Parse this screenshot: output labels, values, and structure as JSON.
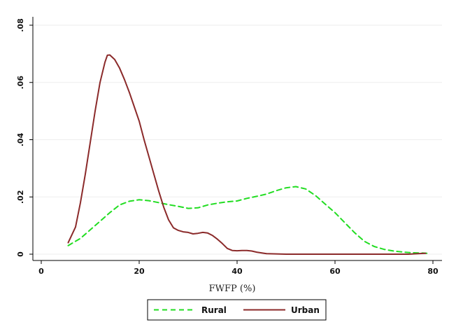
{
  "chart_data": {
    "type": "line",
    "title": "",
    "xlabel": "FWFP (%)",
    "ylabel": "",
    "xlim": [
      0,
      80
    ],
    "ylim": [
      0,
      0.08
    ],
    "xticks": [
      0,
      20,
      40,
      60,
      80
    ],
    "xtick_labels": [
      "0",
      "20",
      "40",
      "60",
      "80"
    ],
    "yticks": [
      0,
      0.02,
      0.04,
      0.06,
      0.08
    ],
    "ytick_labels": [
      "0",
      ".02",
      ".04",
      ".06",
      ".08"
    ],
    "grid": "horizontal",
    "legend_position": "bottom-center",
    "series": [
      {
        "name": "Rural",
        "color": "#22dd22",
        "dash": "dashed",
        "x": [
          5.5,
          8,
          10,
          12,
          14,
          16,
          18,
          20,
          22,
          24,
          26,
          28,
          30,
          32,
          34,
          36,
          38,
          40,
          42,
          44,
          46,
          48,
          50,
          52,
          54,
          56,
          58,
          60,
          62,
          64,
          66,
          68,
          70,
          72,
          74,
          76,
          78,
          79
        ],
        "y": [
          0.003,
          0.0055,
          0.0085,
          0.0115,
          0.0145,
          0.0172,
          0.0185,
          0.019,
          0.0187,
          0.018,
          0.0173,
          0.0167,
          0.016,
          0.0162,
          0.0172,
          0.0178,
          0.0183,
          0.0186,
          0.0195,
          0.0202,
          0.021,
          0.0222,
          0.0232,
          0.0236,
          0.0228,
          0.0205,
          0.0175,
          0.0145,
          0.011,
          0.0075,
          0.0045,
          0.0027,
          0.0017,
          0.0011,
          0.0007,
          0.0005,
          0.0004,
          0.0003
        ]
      },
      {
        "name": "Urban",
        "color": "#8b2a2a",
        "dash": "solid",
        "x": [
          5.5,
          7,
          8,
          9,
          10,
          11,
          12,
          13,
          13.5,
          14,
          15,
          16,
          17,
          18,
          19,
          20,
          21,
          22,
          23,
          24,
          25,
          26,
          27,
          28,
          29,
          30,
          31,
          32,
          33,
          34,
          35,
          36,
          37,
          38,
          39,
          40,
          41,
          42,
          43,
          44,
          46,
          48,
          50,
          55,
          60,
          65,
          70,
          75,
          77,
          78.5
        ],
        "y": [
          0.004,
          0.0095,
          0.018,
          0.028,
          0.039,
          0.05,
          0.06,
          0.067,
          0.0695,
          0.0696,
          0.068,
          0.065,
          0.061,
          0.0565,
          0.0515,
          0.0465,
          0.04,
          0.034,
          0.028,
          0.022,
          0.0165,
          0.012,
          0.0092,
          0.0083,
          0.0078,
          0.0076,
          0.0071,
          0.0073,
          0.0076,
          0.0074,
          0.0065,
          0.0052,
          0.0037,
          0.002,
          0.0013,
          0.0012,
          0.0013,
          0.0013,
          0.0011,
          0.0007,
          0.0002,
          0.0001,
          0.0,
          0.0,
          0.0,
          0.0,
          0.0,
          0.0,
          0.0002,
          0.0003
        ]
      }
    ]
  }
}
